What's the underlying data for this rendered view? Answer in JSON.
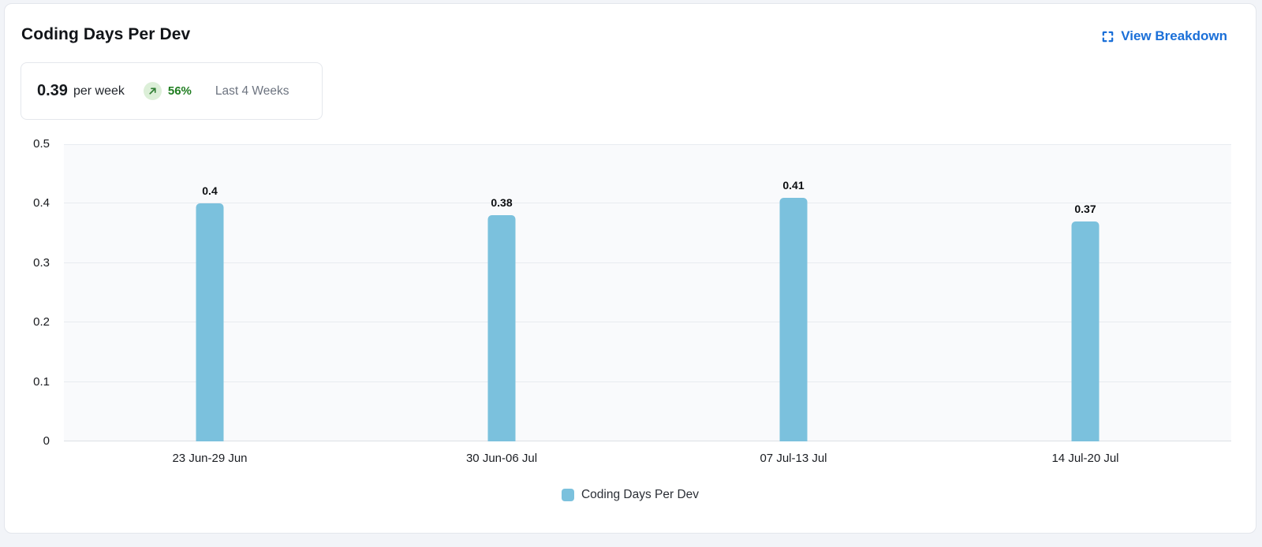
{
  "header": {
    "title": "Coding Days Per Dev",
    "view_breakdown_label": "View Breakdown"
  },
  "summary": {
    "value": "0.39",
    "unit": "per week",
    "trend_icon": "arrow-up-right-icon",
    "change": "56%",
    "period": "Last 4 Weeks"
  },
  "colors": {
    "bar": "#7bc1dd",
    "link": "#1a6fd8",
    "positive_text": "#1f7d20",
    "badge_bg": "#dcefd8",
    "badge_arrow": "#2e7d32",
    "plot_bg": "#f9fafc",
    "gridline": "#e8ebf0"
  },
  "chart_data": {
    "type": "bar",
    "title": "Coding Days Per Dev",
    "categories": [
      "23 Jun-29 Jun",
      "30 Jun-06 Jul",
      "07 Jul-13 Jul",
      "14 Jul-20 Jul"
    ],
    "values": [
      0.4,
      0.38,
      0.41,
      0.37
    ],
    "value_labels": [
      "0.4",
      "0.38",
      "0.41",
      "0.37"
    ],
    "series_name": "Coding Days Per Dev",
    "xlabel": "",
    "ylabel": "",
    "ylim": [
      0,
      0.5
    ],
    "yticks": [
      "0",
      "0.1",
      "0.2",
      "0.3",
      "0.4",
      "0.5"
    ],
    "grid": true,
    "legend_position": "bottom"
  }
}
